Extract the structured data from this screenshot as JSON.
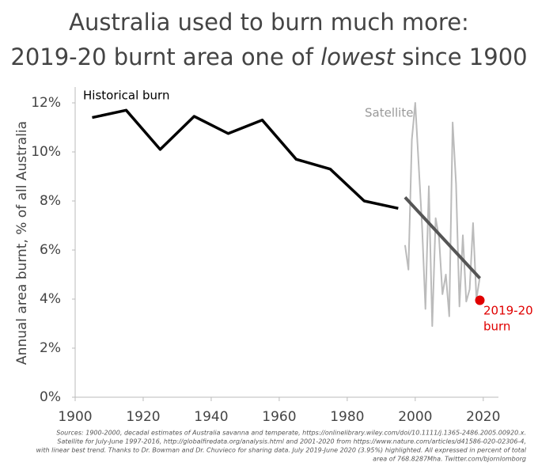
{
  "chart_data": {
    "type": "line",
    "title": [
      "Australia used to burn much more:",
      [
        "2019-20 burnt area one of ",
        "lowest",
        " since 1900"
      ]
    ],
    "y_label": "Annual area burnt, % of all Australia",
    "xlim": [
      1900,
      2024
    ],
    "xticks": [
      1900,
      1920,
      1940,
      1960,
      1980,
      2000,
      2020
    ],
    "ylim": [
      0,
      12
    ],
    "yticks": [
      {
        "value": 0,
        "label": "0%"
      },
      {
        "value": 2,
        "label": "2%"
      },
      {
        "value": 4,
        "label": "4%"
      },
      {
        "value": 6,
        "label": "6%"
      },
      {
        "value": 8,
        "label": "8%"
      },
      {
        "value": 10,
        "label": "10%"
      },
      {
        "value": 12,
        "label": "12%"
      }
    ],
    "grid": false,
    "series": [
      {
        "name": "Historical burn",
        "color": "#000000",
        "x": [
          1905,
          1915,
          1925,
          1935,
          1945,
          1955,
          1965,
          1975,
          1985,
          1995
        ],
        "values": [
          11.4,
          11.7,
          10.1,
          11.45,
          10.75,
          11.3,
          9.7,
          9.3,
          8.0,
          7.7
        ]
      },
      {
        "name": "Satellite",
        "color": "#bbbbbb",
        "x": [
          1997,
          1998,
          1999,
          2000,
          2001,
          2002,
          2003,
          2004,
          2005,
          2006,
          2007,
          2008,
          2009,
          2010,
          2011,
          2012,
          2013,
          2014,
          2015,
          2016,
          2017,
          2018,
          2019
        ],
        "values": [
          6.2,
          5.2,
          10.5,
          12.0,
          9.5,
          7.0,
          3.6,
          8.6,
          2.9,
          7.3,
          6.5,
          4.2,
          5.0,
          3.3,
          11.2,
          8.7,
          3.7,
          6.6,
          3.9,
          4.4,
          7.1,
          4.0,
          4.9
        ]
      }
    ],
    "trend": {
      "color": "#555555",
      "x": [
        1997,
        2019
      ],
      "values": [
        8.15,
        4.85
      ]
    },
    "highlight": {
      "color": "#e00000",
      "x": 2019,
      "value": 3.95,
      "label": [
        "2019-20",
        "burn"
      ]
    },
    "source": [
      "Sources: 1900-2000, decadal estimates of Australia savanna and temperate, https://onlinelibrary.wiley.com/doi/10.1111/j.1365-2486.2005.00920.x.",
      "Satellite for July-June 1997-2016, http://globalfiredata.org/analysis.html and 2001-2020 from https://www.nature.com/articles/d41586-020-02306-4,",
      "with linear best trend. Thanks to Dr. Bowman and Dr. Chuvieco for sharing data. July 2019-June 2020 (3.95%) highlighted. All expressed in percent of total",
      "area of 768.8287Mha. Twitter.com/bjornlomborg"
    ]
  }
}
